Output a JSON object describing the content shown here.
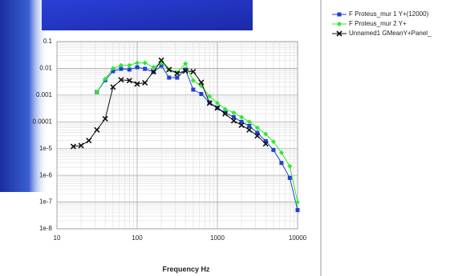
{
  "chart_data": {
    "type": "line",
    "xscale": "log",
    "yscale": "log",
    "grid": true,
    "x_label": "Frequency Hz",
    "xlim": [
      10,
      10000
    ],
    "xticks": [
      10,
      100,
      1000,
      10000
    ],
    "ylim": [
      1e-08,
      0.1
    ],
    "yticks": [
      0.1,
      0.01,
      0.001,
      0.0001,
      {
        "value": 1e-05,
        "label": "1e-5"
      },
      {
        "value": 1e-06,
        "label": "1e-6"
      },
      {
        "value": 1e-07,
        "label": "1e-7"
      },
      {
        "value": 1e-08,
        "label": "1e-8"
      }
    ],
    "series": [
      {
        "name": "F Proteus_mur 1 Y+(12000)",
        "color": "#1f3fd8",
        "marker": "square",
        "x": [
          31.5,
          40,
          50,
          63,
          80,
          100,
          125,
          160,
          200,
          250,
          315,
          400,
          500,
          630,
          800,
          1000,
          1250,
          1600,
          2000,
          2500,
          3150,
          4000,
          5000,
          6300,
          8000,
          10000
        ],
        "values": [
          0.0013,
          0.0036,
          0.0078,
          0.0096,
          0.009,
          0.011,
          0.0096,
          0.0073,
          0.0126,
          0.0045,
          0.0045,
          0.009,
          0.0016,
          0.0011,
          0.00053,
          0.00033,
          0.00022,
          0.00015,
          0.0001,
          7e-05,
          3.9e-05,
          1.9e-05,
          8.9e-06,
          2.9e-06,
          8e-07,
          5e-08
        ]
      },
      {
        "name": "F Proteus_mur 2 Y+",
        "color": "#2ee82e",
        "marker": "diamond",
        "x": [
          31.5,
          40,
          50,
          63,
          80,
          100,
          125,
          160,
          200,
          250,
          315,
          400,
          500,
          630,
          800,
          1000,
          1250,
          1600,
          2000,
          2500,
          3150,
          4000,
          5000,
          6300,
          8000,
          10000
        ],
        "values": [
          0.0013,
          0.004,
          0.01,
          0.013,
          0.013,
          0.016,
          0.016,
          0.011,
          0.016,
          0.009,
          0.007,
          0.015,
          0.0035,
          0.0022,
          0.0009,
          0.0005,
          0.0003,
          0.00022,
          0.00015,
          0.0001,
          6e-05,
          3.5e-05,
          1.8e-05,
          7e-06,
          2.2e-06,
          1e-07
        ]
      },
      {
        "name": "Unnamed1 GMeanY+Panel_",
        "color": "#111111",
        "marker": "cross",
        "x": [
          16,
          20,
          25,
          31.5,
          40,
          50,
          63,
          80,
          100,
          125,
          160,
          200,
          250,
          315,
          400,
          500,
          630,
          800,
          1000,
          1250,
          1600,
          2000,
          2500,
          3150,
          4000
        ],
        "values": [
          1.2e-05,
          1.3e-05,
          2e-05,
          5e-05,
          0.00013,
          0.002,
          0.0037,
          0.0035,
          0.0026,
          0.0029,
          0.0075,
          0.02,
          0.009,
          0.0065,
          0.008,
          0.0075,
          0.003,
          0.0005,
          0.00033,
          0.0002,
          0.00011,
          7.5e-05,
          5e-05,
          3e-05,
          1.5e-05
        ]
      }
    ]
  }
}
